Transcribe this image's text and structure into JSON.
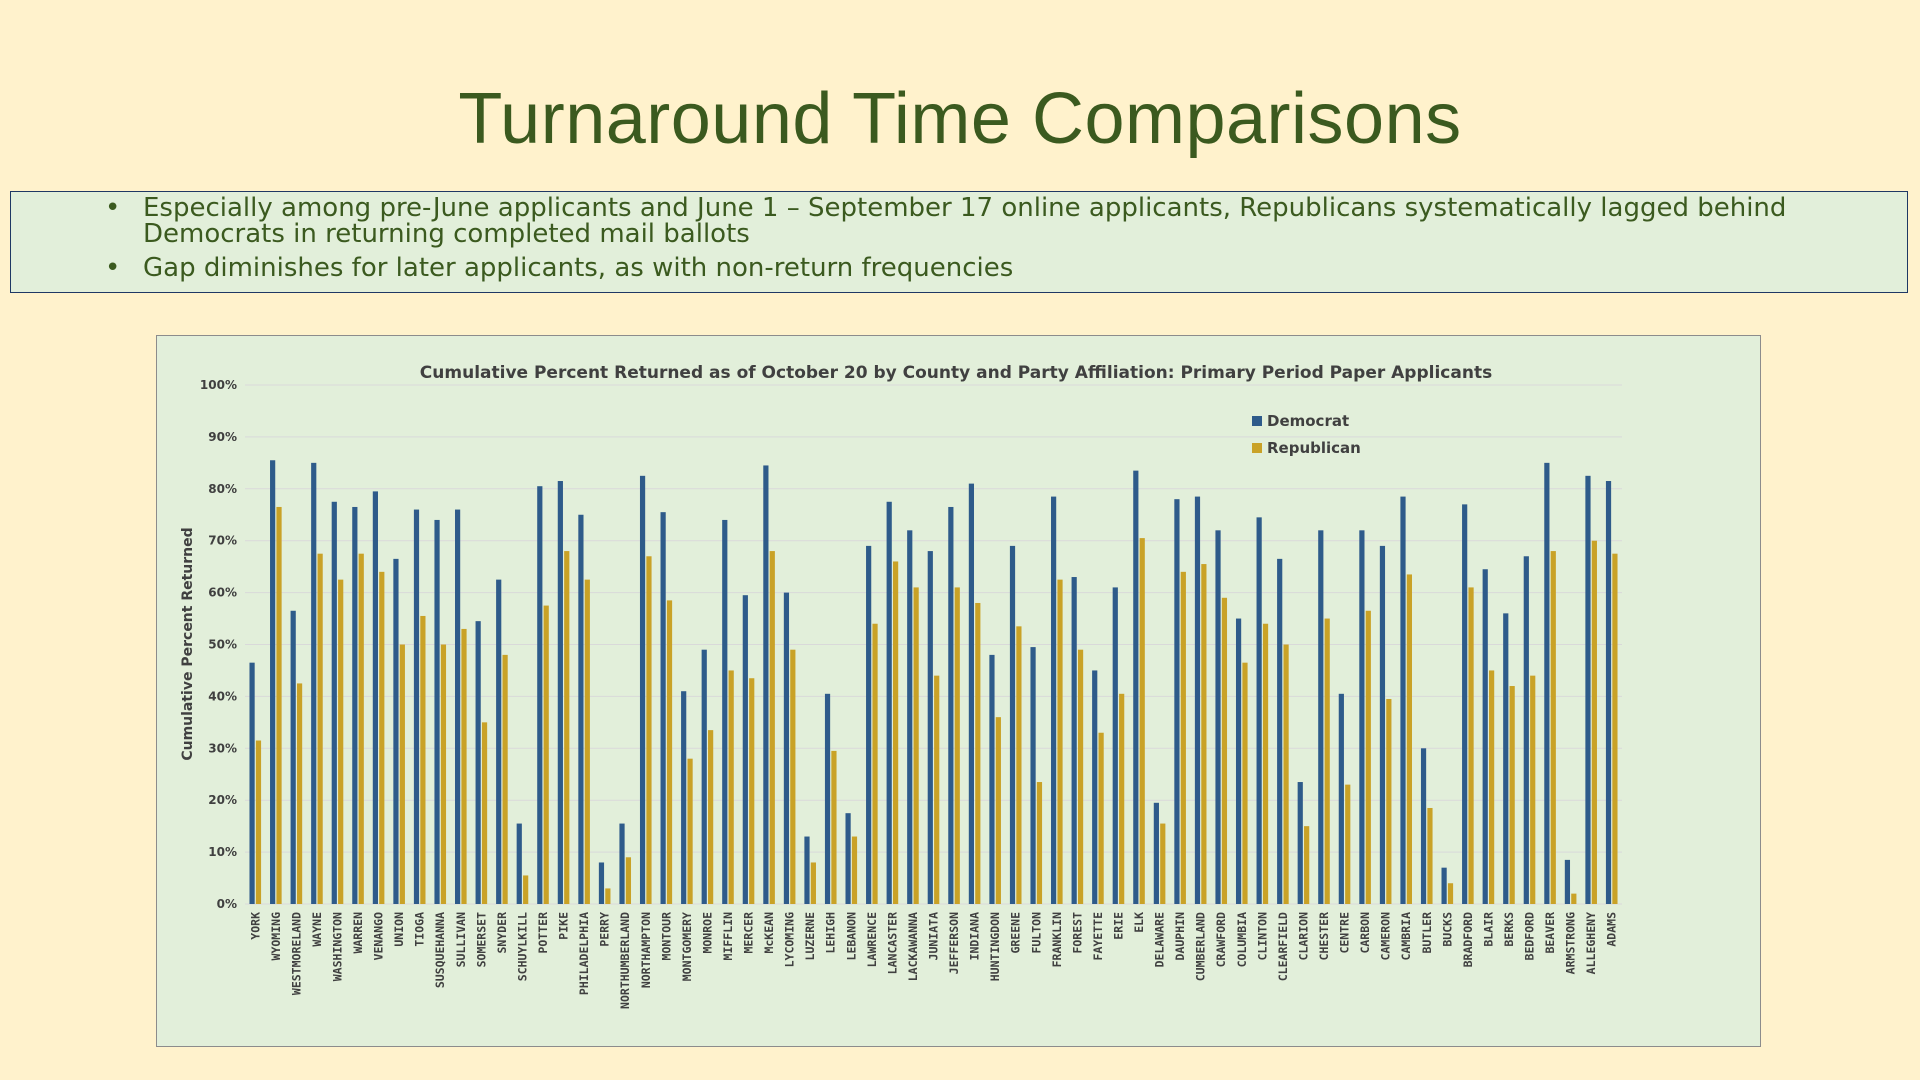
{
  "slide": {
    "title": "Turnaround Time Comparisons",
    "bullets": [
      "Especially among pre-June applicants and June 1 – September 17 online applicants, Republicans systematically lagged behind Democrats in returning completed mail ballots",
      "Gap diminishes for later applicants, as with non-return frequencies"
    ]
  },
  "chart_data": {
    "type": "bar",
    "title": "Cumulative Percent Returned as of October 20 by County and Party Affiliation: Primary Period Paper Applicants",
    "xlabel": "",
    "ylabel": "Cumulative Percent Returned",
    "ylim": [
      0,
      100
    ],
    "yticks": [
      "0%",
      "10%",
      "20%",
      "30%",
      "40%",
      "50%",
      "60%",
      "70%",
      "80%",
      "90%",
      "100%"
    ],
    "grid": true,
    "legend_position": "top-right",
    "colors": {
      "Democrat": "#2e5b8a",
      "Republican": "#c9a227"
    },
    "categories": [
      "YORK",
      "WYOMING",
      "WESTMORELAND",
      "WAYNE",
      "WASHINGTON",
      "WARREN",
      "VENANGO",
      "UNION",
      "TIOGA",
      "SUSQUEHANNA",
      "SULLIVAN",
      "SOMERSET",
      "SNYDER",
      "SCHUYLKILL",
      "POTTER",
      "PIKE",
      "PHILADELPHIA",
      "PERRY",
      "NORTHUMBERLAND",
      "NORTHAMPTON",
      "MONTOUR",
      "MONTGOMERY",
      "MONROE",
      "MIFFLIN",
      "MERCER",
      "McKEAN",
      "LYCOMING",
      "LUZERNE",
      "LEHIGH",
      "LEBANON",
      "LAWRENCE",
      "LANCASTER",
      "LACKAWANNA",
      "JUNIATA",
      "JEFFERSON",
      "INDIANA",
      "HUNTINGDON",
      "GREENE",
      "FULTON",
      "FRANKLIN",
      "FOREST",
      "FAYETTE",
      "ERIE",
      "ELK",
      "DELAWARE",
      "DAUPHIN",
      "CUMBERLAND",
      "CRAWFORD",
      "COLUMBIA",
      "CLINTON",
      "CLEARFIELD",
      "CLARION",
      "CHESTER",
      "CENTRE",
      "CARBON",
      "CAMERON",
      "CAMBRIA",
      "BUTLER",
      "BUCKS",
      "BRADFORD",
      "BLAIR",
      "BERKS",
      "BEDFORD",
      "BEAVER",
      "ARMSTRONG",
      "ALLEGHENY",
      "ADAMS"
    ],
    "series": [
      {
        "name": "Democrat",
        "values": [
          46.5,
          85.5,
          56.5,
          85,
          77.5,
          76.5,
          79.5,
          66.5,
          76,
          74,
          76,
          54.5,
          62.5,
          15.5,
          80.5,
          81.5,
          75,
          8,
          15.5,
          82.5,
          75.5,
          41,
          49,
          74,
          59.5,
          84.5,
          60,
          13,
          40.5,
          17.5,
          69,
          77.5,
          72,
          68,
          76.5,
          81,
          48,
          69,
          49.5,
          78.5,
          63,
          45,
          61,
          83.5,
          19.5,
          78,
          78.5,
          72,
          55,
          74.5,
          66.5,
          23.5,
          72,
          40.5,
          72,
          69,
          78.5,
          30,
          7,
          77,
          64.5,
          56,
          67,
          85,
          8.5,
          82.5,
          81.5
        ]
      },
      {
        "name": "Republican",
        "values": [
          31.5,
          76.5,
          42.5,
          67.5,
          62.5,
          67.5,
          64,
          50,
          55.5,
          50,
          53,
          35,
          48,
          5.5,
          57.5,
          68,
          62.5,
          3,
          9,
          67,
          58.5,
          28,
          33.5,
          45,
          43.5,
          68,
          49,
          8,
          29.5,
          13,
          54,
          66,
          61,
          44,
          61,
          58,
          36,
          53.5,
          23.5,
          62.5,
          49,
          33,
          40.5,
          70.5,
          15.5,
          64,
          65.5,
          59,
          46.5,
          54,
          50,
          15,
          55,
          23,
          56.5,
          39.5,
          63.5,
          18.5,
          4,
          61,
          45,
          42,
          44,
          68,
          2,
          70,
          67.5
        ]
      }
    ]
  }
}
